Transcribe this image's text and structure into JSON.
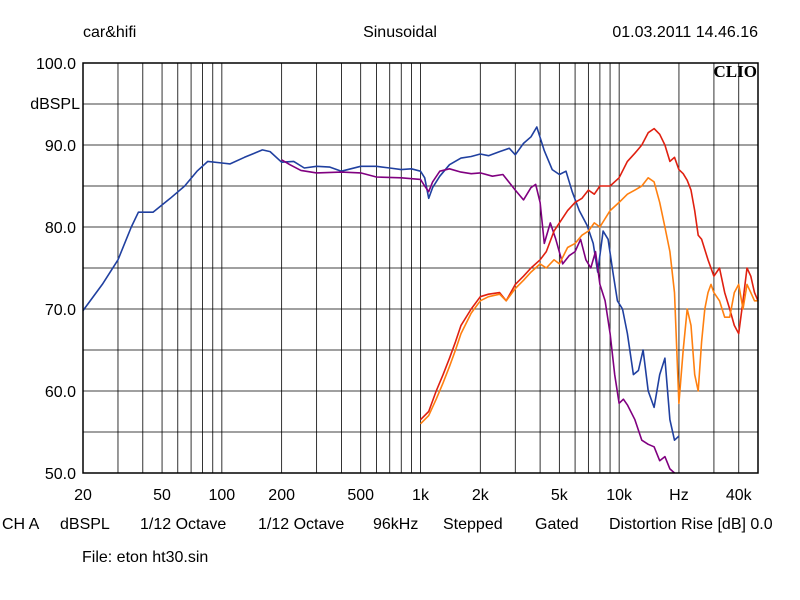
{
  "header": {
    "left": "car&hifi",
    "center": "Sinusoidal",
    "right": "01.03.2011 14.46.16",
    "logo": "CLIO"
  },
  "footer": {
    "items": [
      "CH A",
      "dBSPL",
      "1/12 Octave",
      "1/12 Octave",
      "96kHz",
      "Stepped",
      "Gated",
      "Distortion Rise [dB] 0.0"
    ],
    "file": "File: eton ht30.sin"
  },
  "colors": {
    "frame": "#000000",
    "grid": "#000000",
    "blue": "#2040a0",
    "purple": "#800080",
    "red": "#e02010",
    "orange": "#ff8010"
  },
  "chart_data": {
    "type": "line",
    "xscale": "log",
    "xlim": [
      20,
      50000
    ],
    "ylim": [
      50,
      100
    ],
    "ylabel": "dBSPL",
    "grid": true,
    "x_tick_labels": [
      {
        "x": 20,
        "label": "20"
      },
      {
        "x": 50,
        "label": "50"
      },
      {
        "x": 100,
        "label": "100"
      },
      {
        "x": 200,
        "label": "200"
      },
      {
        "x": 500,
        "label": "500"
      },
      {
        "x": 1000,
        "label": "1k"
      },
      {
        "x": 2000,
        "label": "2k"
      },
      {
        "x": 5000,
        "label": "5k"
      },
      {
        "x": 10000,
        "label": "10k"
      },
      {
        "x": 20000,
        "label": "Hz"
      },
      {
        "x": 40000,
        "label": "40k"
      }
    ],
    "y_tick_labels": [
      {
        "y": 100,
        "label": "100.0"
      },
      {
        "y": 90,
        "label": "90.0"
      },
      {
        "y": 80,
        "label": "80.0"
      },
      {
        "y": 70,
        "label": "70.0"
      },
      {
        "y": 60,
        "label": "60.0"
      },
      {
        "y": 50,
        "label": "50.0"
      }
    ],
    "series": [
      {
        "color": "#2040a0",
        "points": [
          [
            20,
            69.8
          ],
          [
            25,
            73
          ],
          [
            30,
            76
          ],
          [
            35,
            80
          ],
          [
            38,
            81.8
          ],
          [
            45,
            81.8
          ],
          [
            55,
            83.5
          ],
          [
            65,
            85
          ],
          [
            75,
            86.8
          ],
          [
            85,
            88
          ],
          [
            100,
            87.8
          ],
          [
            110,
            87.7
          ],
          [
            130,
            88.5
          ],
          [
            160,
            89.4
          ],
          [
            175,
            89.2
          ],
          [
            200,
            87.9
          ],
          [
            230,
            88
          ],
          [
            260,
            87.2
          ],
          [
            300,
            87.4
          ],
          [
            350,
            87.3
          ],
          [
            400,
            86.8
          ],
          [
            500,
            87.4
          ],
          [
            600,
            87.4
          ],
          [
            700,
            87.2
          ],
          [
            800,
            87
          ],
          [
            900,
            87.1
          ],
          [
            1000,
            86.8
          ],
          [
            1050,
            86
          ],
          [
            1100,
            83.5
          ],
          [
            1150,
            84.8
          ],
          [
            1250,
            86.2
          ],
          [
            1400,
            87.6
          ],
          [
            1600,
            88.4
          ],
          [
            1800,
            88.6
          ],
          [
            2000,
            88.9
          ],
          [
            2200,
            88.7
          ],
          [
            2500,
            89.2
          ],
          [
            2800,
            89.6
          ],
          [
            3000,
            88.8
          ],
          [
            3300,
            90.2
          ],
          [
            3600,
            91
          ],
          [
            3850,
            92.2
          ],
          [
            4200,
            89.3
          ],
          [
            4600,
            87
          ],
          [
            5000,
            86.4
          ],
          [
            5400,
            86.8
          ],
          [
            5800,
            84.3
          ],
          [
            6300,
            82
          ],
          [
            6900,
            80.2
          ],
          [
            7400,
            78
          ],
          [
            7800,
            74.5
          ],
          [
            8300,
            79.5
          ],
          [
            8800,
            78.5
          ],
          [
            9300,
            74.5
          ],
          [
            9800,
            71
          ],
          [
            10400,
            70
          ],
          [
            11000,
            67
          ],
          [
            11800,
            62
          ],
          [
            12500,
            62.5
          ],
          [
            13200,
            65
          ],
          [
            14000,
            60
          ],
          [
            15000,
            58
          ],
          [
            16000,
            62
          ],
          [
            17000,
            64
          ],
          [
            18000,
            56.5
          ],
          [
            19000,
            54
          ],
          [
            20000,
            54.5
          ]
        ]
      },
      {
        "color": "#800080",
        "points": [
          [
            200,
            88.2
          ],
          [
            220,
            87.6
          ],
          [
            250,
            86.9
          ],
          [
            300,
            86.6
          ],
          [
            400,
            86.7
          ],
          [
            500,
            86.6
          ],
          [
            600,
            86.1
          ],
          [
            800,
            86
          ],
          [
            1000,
            85.8
          ],
          [
            1050,
            85
          ],
          [
            1100,
            84.3
          ],
          [
            1150,
            85.5
          ],
          [
            1250,
            86.8
          ],
          [
            1400,
            87.1
          ],
          [
            1600,
            86.7
          ],
          [
            1800,
            86.5
          ],
          [
            2000,
            86.6
          ],
          [
            2300,
            86.2
          ],
          [
            2600,
            86.4
          ],
          [
            3000,
            84.5
          ],
          [
            3300,
            83.3
          ],
          [
            3600,
            84.8
          ],
          [
            3800,
            85.2
          ],
          [
            4000,
            83
          ],
          [
            4200,
            78
          ],
          [
            4500,
            80.5
          ],
          [
            4800,
            78.5
          ],
          [
            5200,
            75.5
          ],
          [
            5600,
            76.5
          ],
          [
            6000,
            77
          ],
          [
            6400,
            78.5
          ],
          [
            6800,
            76
          ],
          [
            7200,
            75
          ],
          [
            7600,
            77
          ],
          [
            8000,
            73
          ],
          [
            8500,
            71
          ],
          [
            9000,
            67
          ],
          [
            9500,
            62
          ],
          [
            10000,
            58.5
          ],
          [
            10500,
            59
          ],
          [
            11000,
            58.3
          ],
          [
            12000,
            56.5
          ],
          [
            13000,
            54
          ],
          [
            14000,
            53.5
          ],
          [
            15000,
            53.2
          ],
          [
            16000,
            51.5
          ],
          [
            17000,
            52
          ],
          [
            18000,
            50.5
          ],
          [
            19000,
            50
          ]
        ]
      },
      {
        "color": "#e02010",
        "points": [
          [
            1000,
            56.5
          ],
          [
            1100,
            57.5
          ],
          [
            1200,
            60
          ],
          [
            1300,
            62
          ],
          [
            1400,
            64
          ],
          [
            1500,
            66
          ],
          [
            1600,
            68
          ],
          [
            1800,
            70
          ],
          [
            2000,
            71.5
          ],
          [
            2200,
            71.8
          ],
          [
            2500,
            72
          ],
          [
            2700,
            71
          ],
          [
            3000,
            73
          ],
          [
            3300,
            74
          ],
          [
            3600,
            75
          ],
          [
            4000,
            76
          ],
          [
            4300,
            77
          ],
          [
            4700,
            79.5
          ],
          [
            5000,
            80.5
          ],
          [
            5500,
            82
          ],
          [
            6000,
            83
          ],
          [
            6500,
            83.5
          ],
          [
            7000,
            84.5
          ],
          [
            7500,
            84
          ],
          [
            8000,
            85
          ],
          [
            9000,
            85
          ],
          [
            10000,
            86
          ],
          [
            11000,
            88
          ],
          [
            12000,
            89
          ],
          [
            13000,
            90
          ],
          [
            14000,
            91.5
          ],
          [
            15000,
            92
          ],
          [
            16000,
            91.3
          ],
          [
            17000,
            90
          ],
          [
            18000,
            88
          ],
          [
            19000,
            88.5
          ],
          [
            20000,
            87
          ],
          [
            21000,
            86.5
          ],
          [
            22000,
            85.7
          ],
          [
            23000,
            84.5
          ],
          [
            24000,
            82
          ],
          [
            25000,
            79
          ],
          [
            26000,
            78.5
          ],
          [
            28000,
            76
          ],
          [
            30000,
            74
          ],
          [
            32000,
            75
          ],
          [
            34000,
            72
          ],
          [
            36000,
            70
          ],
          [
            38000,
            68
          ],
          [
            40000,
            67
          ],
          [
            42000,
            71
          ],
          [
            44000,
            75
          ],
          [
            46000,
            74
          ],
          [
            48000,
            72
          ],
          [
            50000,
            71
          ]
        ]
      },
      {
        "color": "#ff8010",
        "points": [
          [
            1000,
            56
          ],
          [
            1100,
            57
          ],
          [
            1200,
            59
          ],
          [
            1300,
            61
          ],
          [
            1400,
            63
          ],
          [
            1500,
            65
          ],
          [
            1600,
            67
          ],
          [
            1800,
            69.5
          ],
          [
            2000,
            71
          ],
          [
            2200,
            71.5
          ],
          [
            2500,
            71.8
          ],
          [
            2700,
            71
          ],
          [
            3000,
            72.5
          ],
          [
            3300,
            73.5
          ],
          [
            3600,
            74.5
          ],
          [
            4000,
            75.5
          ],
          [
            4300,
            75
          ],
          [
            4700,
            76
          ],
          [
            5000,
            75.5
          ],
          [
            5500,
            77.5
          ],
          [
            6000,
            78
          ],
          [
            6500,
            79
          ],
          [
            7000,
            79.5
          ],
          [
            7500,
            80.5
          ],
          [
            8000,
            80
          ],
          [
            9000,
            82
          ],
          [
            10000,
            83
          ],
          [
            11000,
            84
          ],
          [
            12000,
            84.5
          ],
          [
            13000,
            85
          ],
          [
            14000,
            86
          ],
          [
            15000,
            85.5
          ],
          [
            16000,
            83
          ],
          [
            17000,
            80
          ],
          [
            18000,
            77
          ],
          [
            19000,
            72
          ],
          [
            20000,
            58.5
          ],
          [
            21000,
            65
          ],
          [
            22000,
            70
          ],
          [
            23000,
            68
          ],
          [
            24000,
            62
          ],
          [
            25000,
            60
          ],
          [
            26000,
            66
          ],
          [
            27000,
            70
          ],
          [
            28000,
            72
          ],
          [
            29000,
            73
          ],
          [
            30000,
            72
          ],
          [
            32000,
            71
          ],
          [
            34000,
            69
          ],
          [
            36000,
            69
          ],
          [
            38000,
            72
          ],
          [
            40000,
            73
          ],
          [
            42000,
            70
          ],
          [
            44000,
            73
          ],
          [
            46000,
            72
          ],
          [
            48000,
            71
          ],
          [
            50000,
            71
          ]
        ]
      }
    ]
  }
}
